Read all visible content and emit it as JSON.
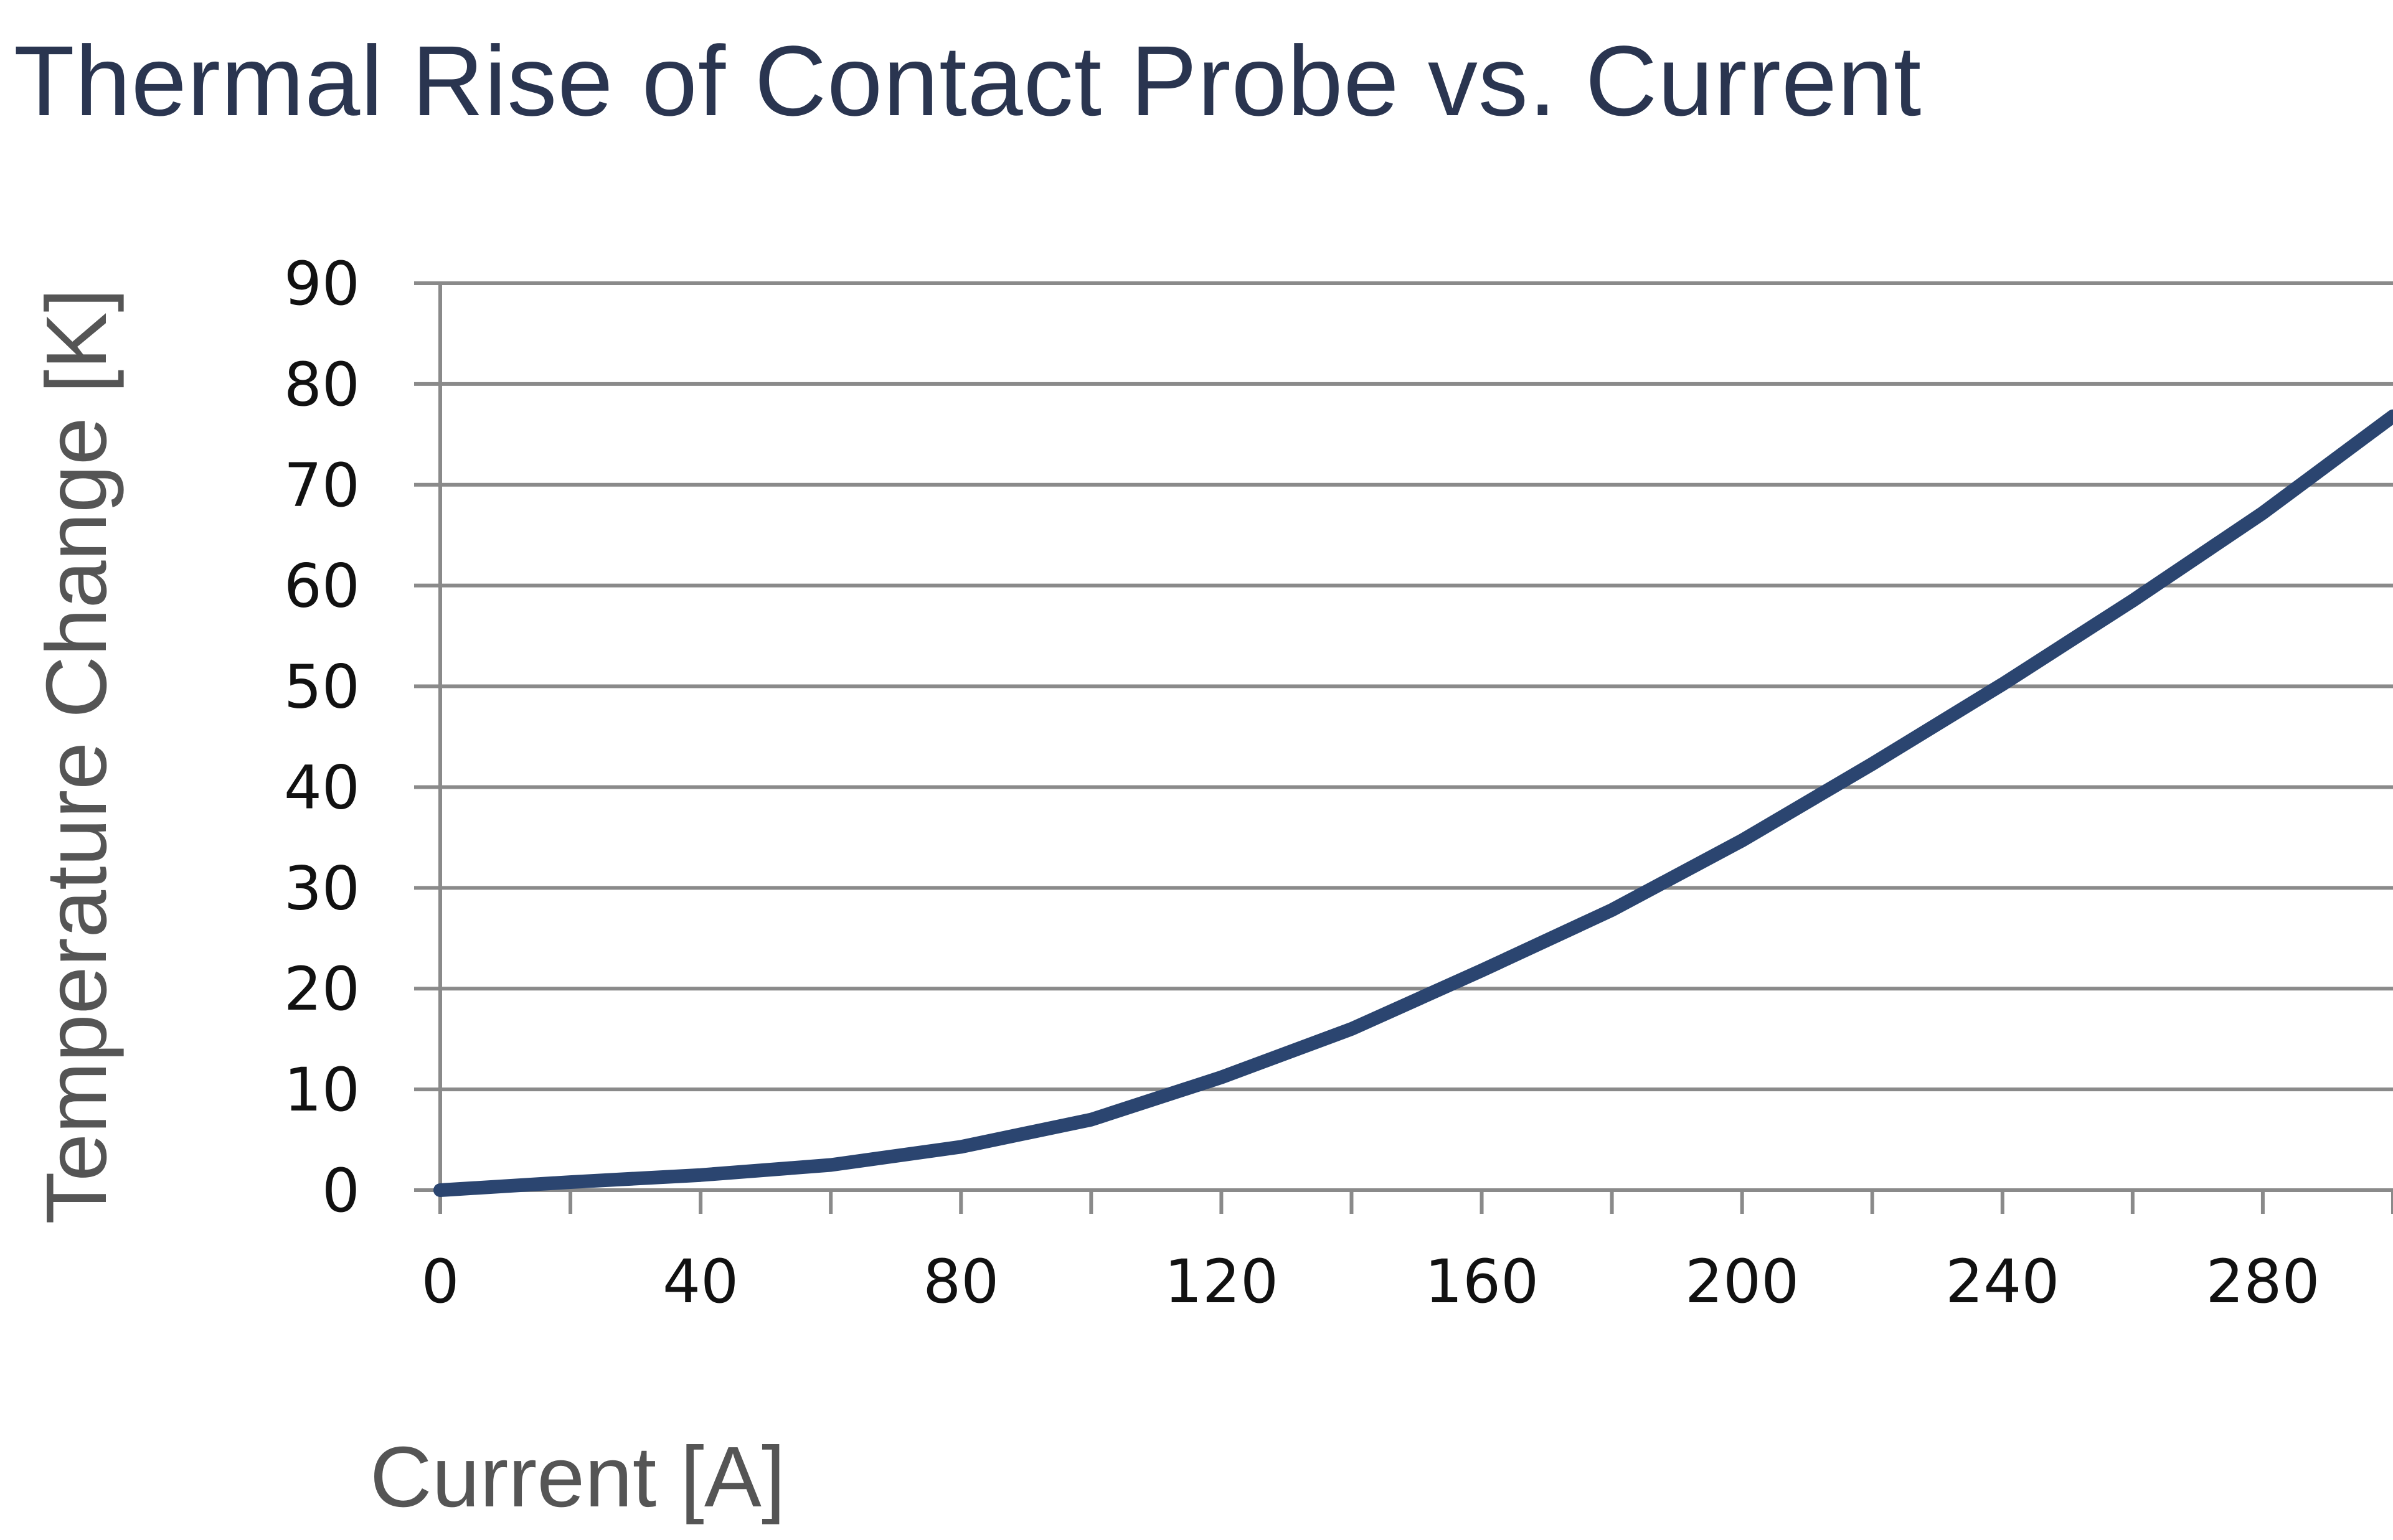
{
  "chart_data": {
    "type": "line",
    "title": "Thermal Rise of Contact Probe vs. Current",
    "xlabel": "Current [A]",
    "ylabel": "Temperature Change [K]",
    "xlim": [
      0,
      300
    ],
    "ylim": [
      0,
      90
    ],
    "xticks": [
      0,
      40,
      80,
      120,
      160,
      200,
      240,
      280
    ],
    "yticks": [
      0,
      10,
      20,
      30,
      40,
      50,
      60,
      70,
      80,
      90
    ],
    "grid": "horizontal",
    "line_color": "#2b4570",
    "series": [
      {
        "x": [
          0,
          20,
          40,
          60,
          80,
          100,
          120,
          140,
          160,
          180,
          200,
          220,
          240,
          260,
          280,
          300
        ],
        "y": [
          0,
          0.8,
          1.5,
          2.5,
          4.3,
          7,
          11.2,
          16,
          21.8,
          27.8,
          34.7,
          42.3,
          50.2,
          58.5,
          67.2,
          76.8
        ]
      }
    ]
  }
}
